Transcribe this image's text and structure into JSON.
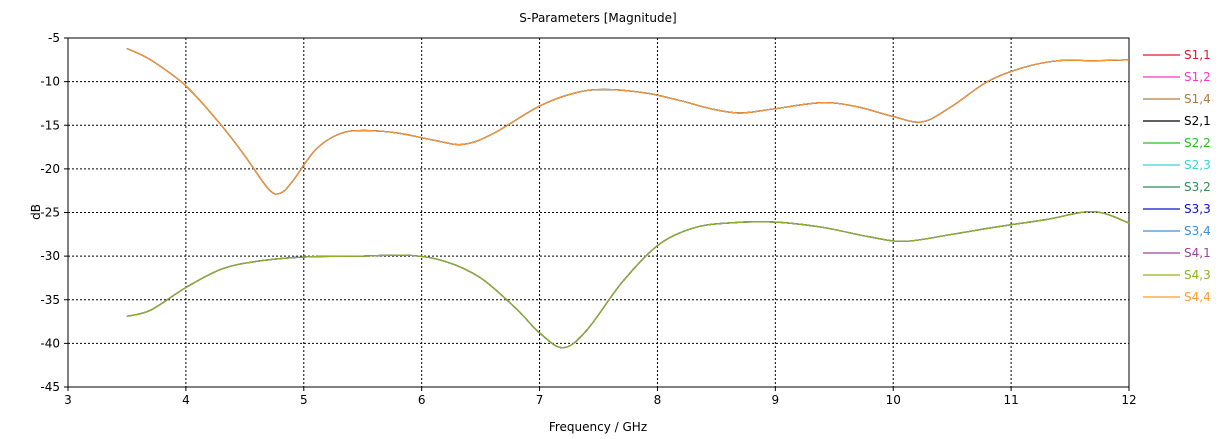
{
  "chart_data": {
    "type": "line",
    "title": "S-Parameters [Magnitude]",
    "xlabel": "Frequency / GHz",
    "ylabel": "dB",
    "xlim": [
      3,
      12
    ],
    "ylim": [
      -45,
      -5
    ],
    "xticks": [
      3,
      4,
      5,
      6,
      7,
      8,
      9,
      10,
      11,
      12
    ],
    "yticks": [
      -5,
      -10,
      -15,
      -20,
      -25,
      -30,
      -35,
      -40,
      -45
    ],
    "grid": true,
    "legend_position": "right",
    "series": [
      {
        "name": "S1,1",
        "color": "#e41a1c",
        "shape": "reflection"
      },
      {
        "name": "S1,2",
        "color": "#ff33cc",
        "shape": "coupling"
      },
      {
        "name": "S1,4",
        "color": "#b07a3a",
        "shape": "reflection"
      },
      {
        "name": "S2,1",
        "color": "#000000",
        "shape": "coupling"
      },
      {
        "name": "S2,2",
        "color": "#22c022",
        "shape": "reflection"
      },
      {
        "name": "S2,3",
        "color": "#33d6d6",
        "shape": "coupling"
      },
      {
        "name": "S3,2",
        "color": "#2e8b57",
        "shape": "coupling"
      },
      {
        "name": "S3,3",
        "color": "#1010d0",
        "shape": "reflection"
      },
      {
        "name": "S3,4",
        "color": "#3a8fd9",
        "shape": "coupling"
      },
      {
        "name": "S4,1",
        "color": "#a040a0",
        "shape": "coupling"
      },
      {
        "name": "S4,3",
        "color": "#8db320",
        "shape": "coupling"
      },
      {
        "name": "S4,4",
        "color": "#ff9a2e",
        "shape": "reflection"
      }
    ],
    "curves": {
      "reflection": {
        "x": [
          3.5,
          3.7,
          4.0,
          4.3,
          4.5,
          4.7,
          4.8,
          4.9,
          5.1,
          5.3,
          5.5,
          5.8,
          6.1,
          6.35,
          6.6,
          7.0,
          7.3,
          7.55,
          7.9,
          8.2,
          8.45,
          8.7,
          9.0,
          9.4,
          9.7,
          10.0,
          10.25,
          10.5,
          10.8,
          11.1,
          11.4,
          11.7,
          12.0
        ],
        "y": [
          -6.2,
          -7.5,
          -10.5,
          -15.0,
          -18.5,
          -22.3,
          -22.8,
          -21.5,
          -17.8,
          -16.0,
          -15.6,
          -15.9,
          -16.7,
          -17.2,
          -16.0,
          -12.8,
          -11.3,
          -10.9,
          -11.3,
          -12.2,
          -13.1,
          -13.6,
          -13.1,
          -12.4,
          -12.9,
          -14.0,
          -14.6,
          -12.8,
          -10.0,
          -8.4,
          -7.6,
          -7.6,
          -7.5
        ]
      },
      "coupling": {
        "x": [
          3.5,
          3.7,
          4.0,
          4.3,
          4.6,
          5.0,
          5.5,
          5.9,
          6.2,
          6.5,
          6.8,
          7.0,
          7.2,
          7.4,
          7.7,
          8.0,
          8.3,
          8.6,
          9.0,
          9.4,
          9.8,
          10.1,
          10.5,
          10.9,
          11.3,
          11.7,
          12.0
        ],
        "y": [
          -36.9,
          -36.2,
          -33.6,
          -31.5,
          -30.6,
          -30.1,
          -30.0,
          -29.9,
          -30.6,
          -32.5,
          -36.0,
          -38.8,
          -40.5,
          -38.5,
          -33.0,
          -28.8,
          -26.8,
          -26.2,
          -26.1,
          -26.7,
          -27.8,
          -28.3,
          -27.5,
          -26.6,
          -25.8,
          -24.9,
          -26.2
        ]
      }
    }
  }
}
